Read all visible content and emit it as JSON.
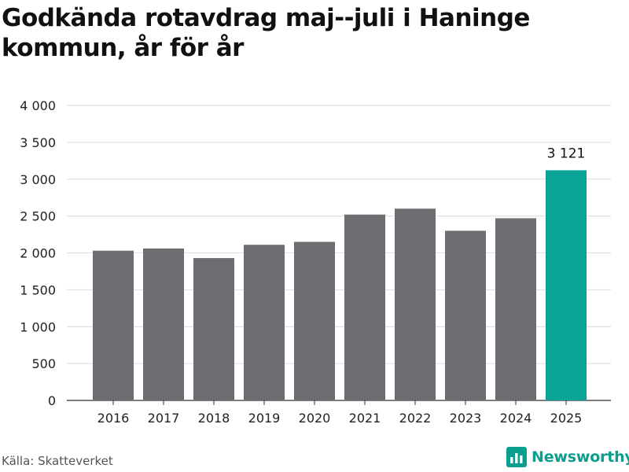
{
  "title": "Godkända rotavdrag maj--juli i Haninge kommun, år för år",
  "source": "Källa: Skatteverket",
  "brand": {
    "name": "Newsworthy",
    "icon": "bar-chart-icon",
    "color": "#0a9e8f"
  },
  "chart_data": {
    "type": "bar",
    "title": "Godkända rotavdrag maj--juli i Haninge kommun, år för år",
    "xlabel": "",
    "ylabel": "",
    "categories": [
      "2016",
      "2017",
      "2018",
      "2019",
      "2020",
      "2021",
      "2022",
      "2023",
      "2024",
      "2025"
    ],
    "values": [
      2030,
      2060,
      1930,
      2110,
      2150,
      2520,
      2600,
      2300,
      2470,
      3121
    ],
    "ylim": [
      0,
      4000
    ],
    "yticks": [
      0,
      500,
      1000,
      1500,
      2000,
      2500,
      3000,
      3500,
      4000
    ],
    "ytick_labels": [
      "0",
      "500",
      "1 000",
      "1 500",
      "2 000",
      "2 500",
      "3 000",
      "3 500",
      "4 000"
    ],
    "highlight_index": 9,
    "highlight_label": "3 121",
    "bar_color": "#6e6d72",
    "highlight_color": "#0aa396",
    "grid": true
  }
}
